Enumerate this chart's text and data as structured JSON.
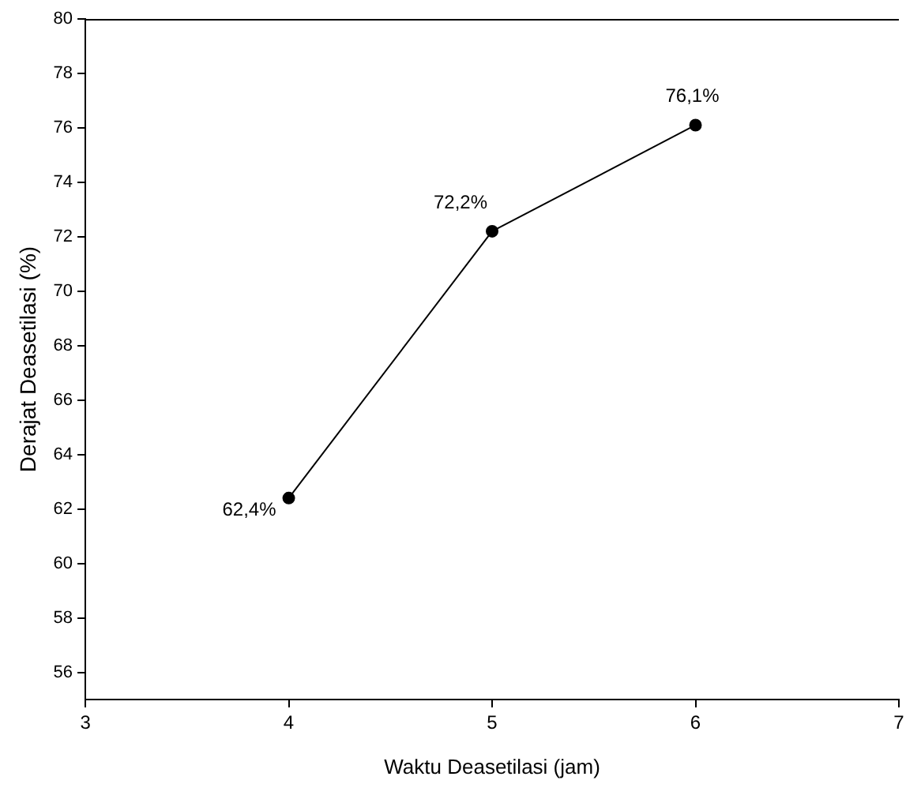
{
  "chart_data": {
    "type": "line",
    "xlabel": "Waktu Deasetilasi (jam)",
    "ylabel": "Derajat Deasetilasi (%)",
    "x": [
      4,
      5,
      6
    ],
    "series": [
      {
        "color": "#000000",
        "values": [
          62.4,
          72.2,
          76.1
        ],
        "value_labels": [
          "62,4%",
          "72,2%",
          "76,1%"
        ]
      }
    ],
    "xlim": [
      3,
      7
    ],
    "xticks": [
      3,
      4,
      5,
      6,
      7
    ],
    "ylim": [
      55,
      80
    ],
    "yticks": [
      56,
      58,
      60,
      62,
      64,
      66,
      68,
      70,
      72,
      74,
      76,
      78,
      80
    ],
    "marker": "circle",
    "line_style": "solid",
    "grid": false,
    "legend": false
  }
}
